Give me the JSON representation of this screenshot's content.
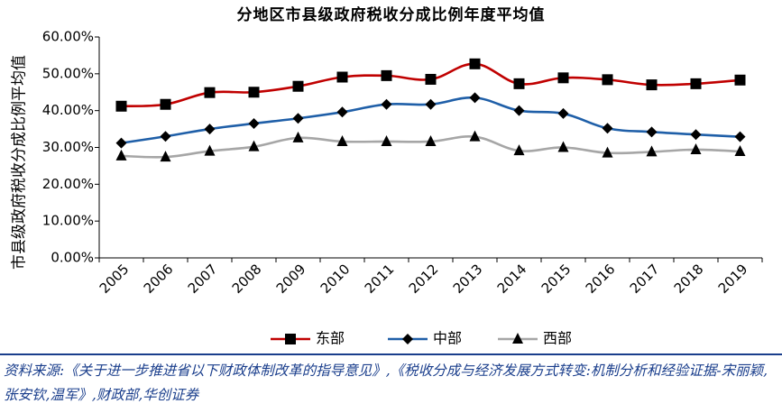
{
  "chart_data": {
    "type": "line",
    "title": "分地区市县级政府税收分成比例年度平均值",
    "ylabel": "市县级政府税收分成比例平均值",
    "xlabel": "",
    "x": [
      "2005",
      "2006",
      "2007",
      "2008",
      "2009",
      "2010",
      "2011",
      "2012",
      "2013",
      "2014",
      "2015",
      "2016",
      "2017",
      "2018",
      "2019"
    ],
    "yticks": [
      "0.00%",
      "10.00%",
      "20.00%",
      "30.00%",
      "40.00%",
      "50.00%",
      "60.00%"
    ],
    "ylim": [
      0,
      60
    ],
    "grid": false,
    "legend_position": "bottom",
    "series": [
      {
        "name": "东部",
        "color": "#c00000",
        "marker": "square",
        "values": [
          41.2,
          41.7,
          44.9,
          45.0,
          46.6,
          49.1,
          49.5,
          48.5,
          52.7,
          47.3,
          48.9,
          48.4,
          47.0,
          47.3,
          48.3
        ]
      },
      {
        "name": "中部",
        "color": "#1f5fa8",
        "marker": "diamond",
        "values": [
          31.2,
          33.0,
          35.0,
          36.5,
          37.9,
          39.6,
          41.7,
          41.7,
          43.5,
          40.0,
          39.2,
          35.2,
          34.2,
          33.5,
          32.9
        ]
      },
      {
        "name": "西部",
        "color": "#a6a6a6",
        "marker": "triangle",
        "values": [
          27.7,
          27.4,
          29.0,
          30.2,
          32.6,
          31.6,
          31.6,
          31.6,
          32.9,
          29.1,
          30.0,
          28.5,
          28.8,
          29.4,
          28.9
        ]
      }
    ]
  },
  "source": {
    "text": "资料来源:《关于进一步推进省以下财政体制改革的指导意见》,《税收分成与经济发展方式转变:机制分析和经验证据-宋丽颖,张安钦,温军》,财政部,华创证券"
  }
}
